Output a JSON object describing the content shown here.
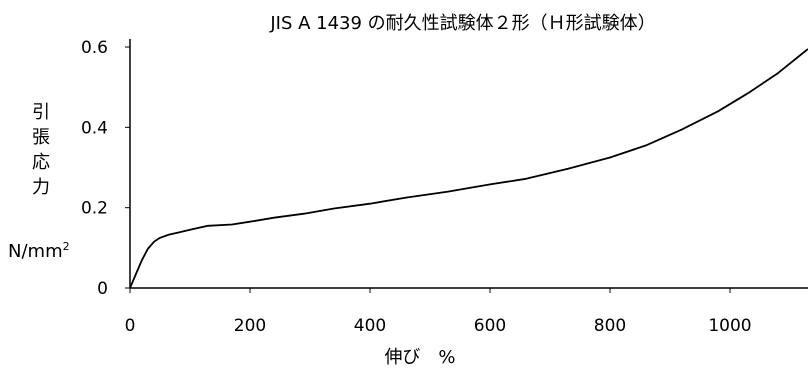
{
  "chart_data": {
    "type": "line",
    "title": "JIS A 1439 の耐久性試験体２形（Ｈ形試験体）",
    "xlabel": "伸び　%",
    "ylabel_chars": [
      "引",
      "張",
      "応",
      "力"
    ],
    "ylabel_unit": "N/mm",
    "ylabel_unit_sup": "2",
    "xlim": [
      0,
      1130
    ],
    "ylim": [
      0,
      0.62
    ],
    "xticks": [
      0,
      200,
      400,
      600,
      800,
      1000
    ],
    "xtick_labels": [
      "0",
      "200",
      "400",
      "600",
      "800",
      "1000"
    ],
    "yticks": [
      0,
      0.2,
      0.4,
      0.6
    ],
    "ytick_labels": [
      "0",
      "0.2",
      "0.4",
      "0.6"
    ],
    "grid": false,
    "series": [
      {
        "color": "#000000",
        "x": [
          0,
          10,
          20,
          30,
          40,
          50,
          65,
          80,
          100,
          130,
          170,
          200,
          240,
          290,
          340,
          400,
          460,
          530,
          600,
          660,
          730,
          800,
          860,
          920,
          980,
          1030,
          1080,
          1130
        ],
        "y": [
          0,
          0.035,
          0.07,
          0.098,
          0.115,
          0.125,
          0.133,
          0.138,
          0.145,
          0.155,
          0.158,
          0.165,
          0.175,
          0.185,
          0.198,
          0.21,
          0.225,
          0.24,
          0.258,
          0.272,
          0.297,
          0.325,
          0.355,
          0.395,
          0.44,
          0.485,
          0.535,
          0.595
        ]
      }
    ]
  }
}
